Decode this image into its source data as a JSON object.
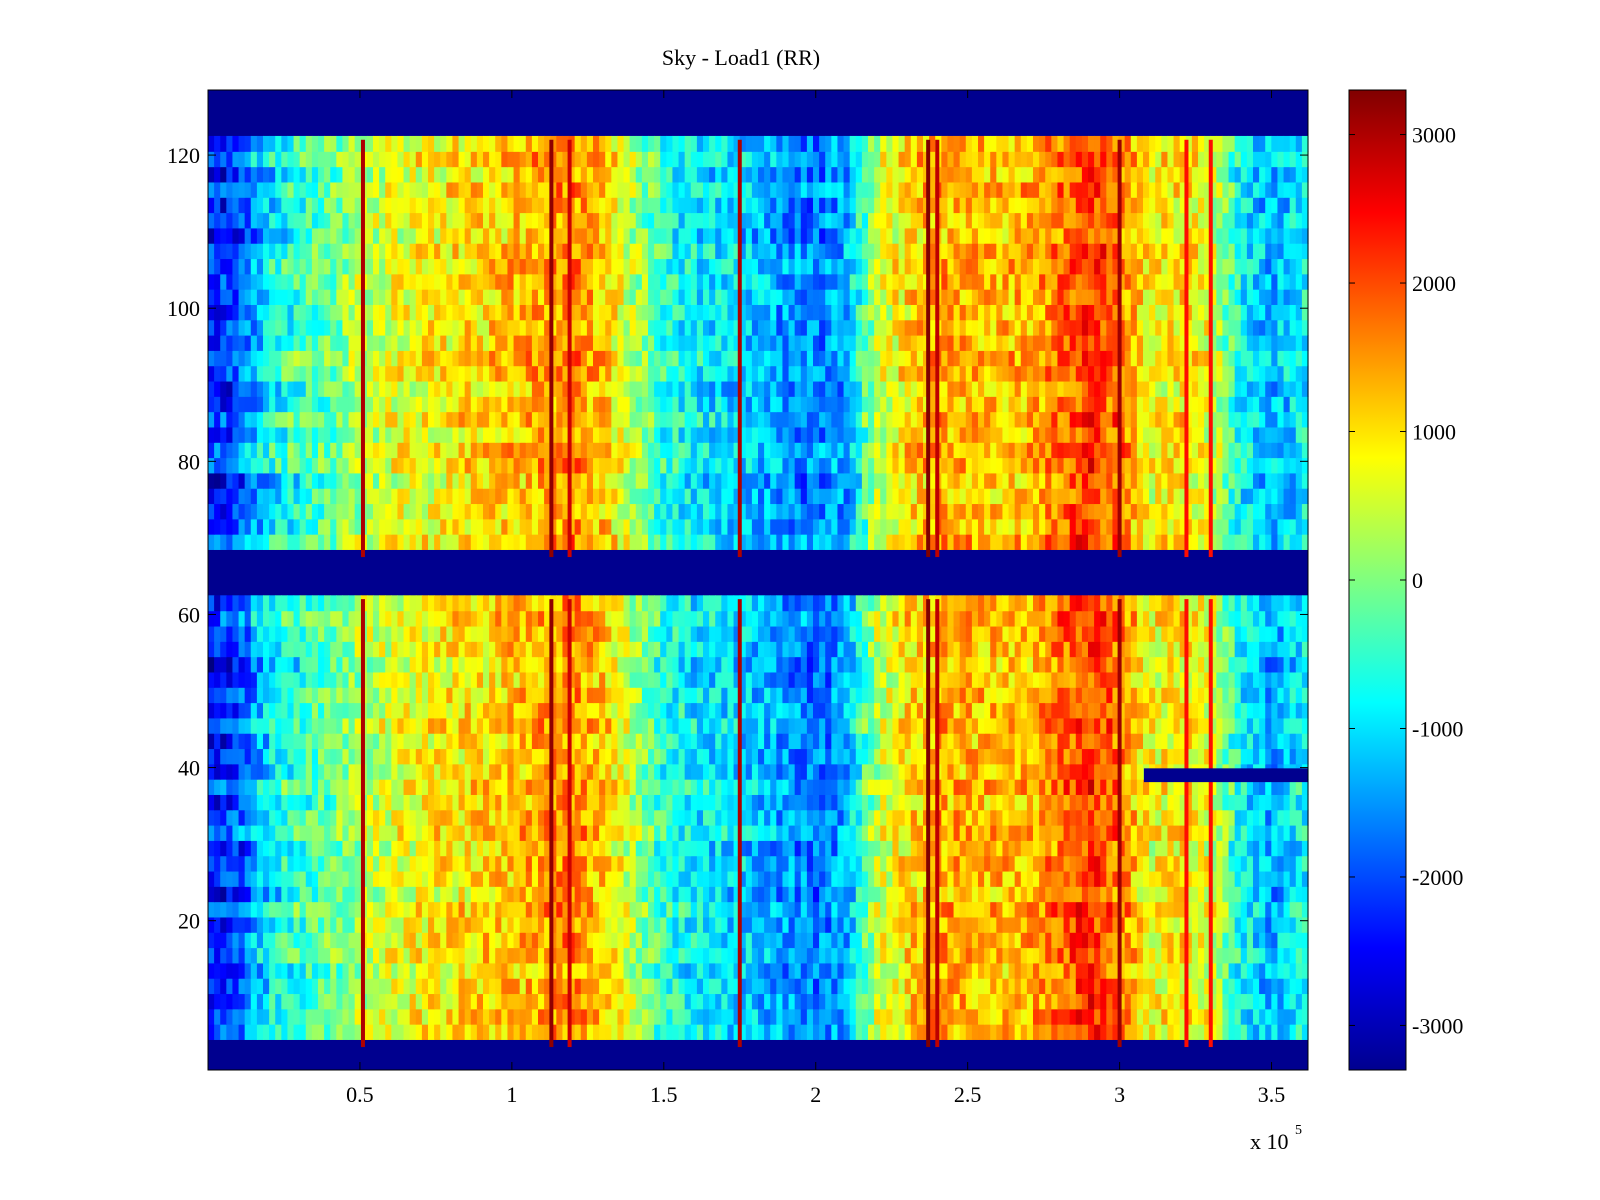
{
  "chart_data": {
    "type": "heatmap",
    "title": "Sky - Load1 (RR)",
    "xlabel": "",
    "ylabel": "",
    "x_exponent_label": "x 10",
    "x_exponent_power": "5",
    "xlim": [
      0,
      362000
    ],
    "ylim": [
      0.5,
      128.5
    ],
    "x_ticks": [
      50000,
      100000,
      150000,
      200000,
      250000,
      300000,
      350000
    ],
    "x_tick_labels": [
      "0.5",
      "1",
      "1.5",
      "2",
      "2.5",
      "3",
      "3.5"
    ],
    "y_ticks": [
      20,
      40,
      60,
      80,
      100,
      120
    ],
    "y_tick_labels": [
      "20",
      "40",
      "60",
      "80",
      "100",
      "120"
    ],
    "colorbar": {
      "colormap": "jet",
      "clim": [
        -3300,
        3300
      ],
      "ticks": [
        3000,
        2000,
        1000,
        0,
        -1000,
        -2000,
        -3000
      ],
      "tick_labels": [
        "3000",
        "2000",
        "1000",
        "0",
        "-1000",
        "-2000",
        "-3000"
      ]
    },
    "grid": false,
    "masked_channel_bands": [
      [
        0.5,
        3.5
      ],
      [
        62,
        67.5
      ],
      [
        122,
        128.5
      ]
    ],
    "masked_partial_band": {
      "y": 39,
      "x_from": 308000,
      "x_to": 362000
    },
    "column_profile": {
      "x": [
        0,
        10000,
        20000,
        30000,
        40000,
        50000,
        60000,
        70000,
        80000,
        90000,
        100000,
        110000,
        120000,
        130000,
        140000,
        150000,
        160000,
        170000,
        180000,
        190000,
        200000,
        210000,
        220000,
        230000,
        240000,
        250000,
        260000,
        270000,
        280000,
        290000,
        300000,
        310000,
        320000,
        330000,
        340000,
        350000,
        362000
      ],
      "value": [
        -2400,
        -2000,
        -900,
        -500,
        -200,
        300,
        600,
        800,
        900,
        1000,
        1200,
        1400,
        1600,
        1200,
        300,
        -600,
        -900,
        -1000,
        -1200,
        -1500,
        -1700,
        -1400,
        400,
        1000,
        1400,
        1300,
        1200,
        1300,
        1700,
        2200,
        1700,
        700,
        1000,
        600,
        -800,
        -1400,
        -700
      ]
    },
    "spike_lines": [
      {
        "x": 51000,
        "value": 3000
      },
      {
        "x": 113000,
        "value": 3200
      },
      {
        "x": 119000,
        "value": 2800
      },
      {
        "x": 175000,
        "value": 3000
      },
      {
        "x": 237000,
        "value": 3300
      },
      {
        "x": 240000,
        "value": 2900
      },
      {
        "x": 300000,
        "value": 3100
      },
      {
        "x": 322000,
        "value": 2400
      },
      {
        "x": 330000,
        "value": 2400
      }
    ]
  }
}
